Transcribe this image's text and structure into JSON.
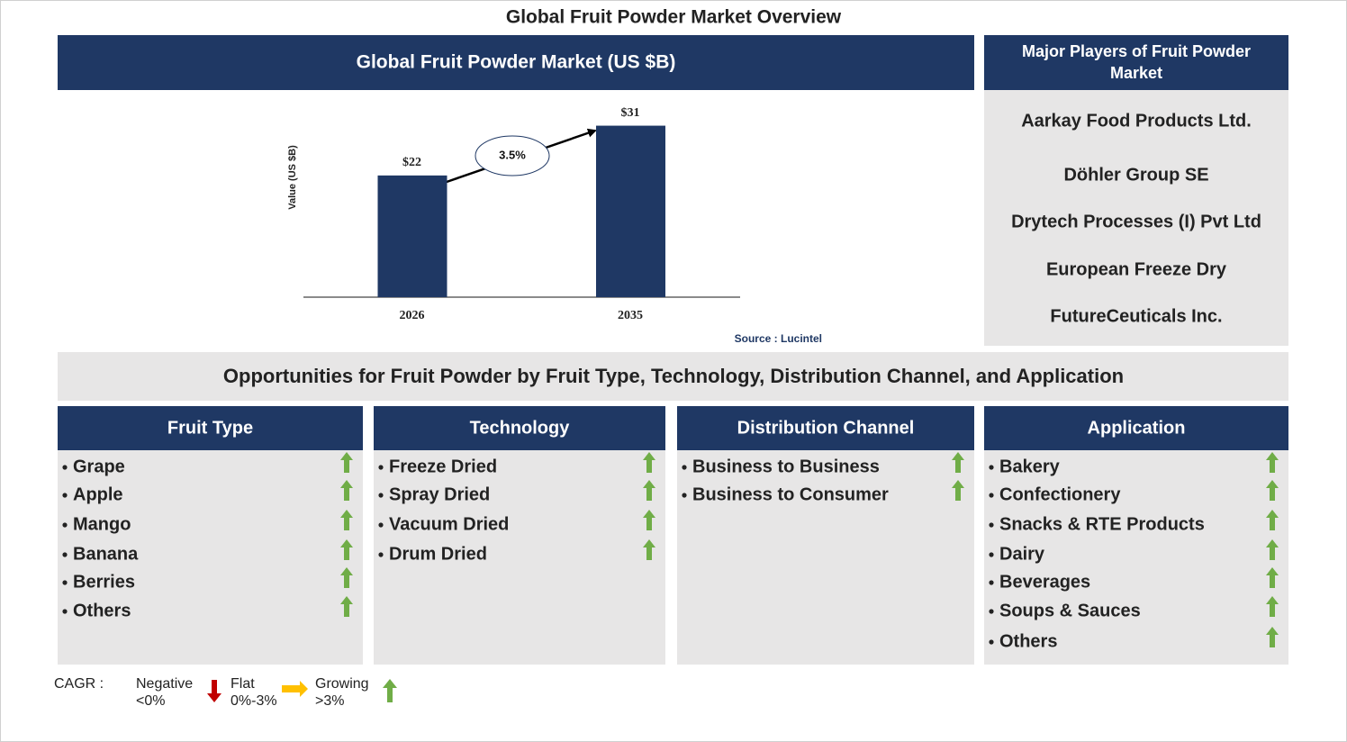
{
  "title": "Global Fruit Powder Market Overview",
  "chart_data": {
    "type": "bar",
    "title": "Global Fruit Powder Market (US $B)",
    "y_label": "Value (US $B)",
    "categories": [
      "2026",
      "2035"
    ],
    "values": [
      22,
      31
    ],
    "value_labels": [
      "$22",
      "$31"
    ],
    "color": "#1f3864",
    "ylim": [
      0,
      35
    ],
    "annotation": "3.5%",
    "source": "Source : Lucintel"
  },
  "players": {
    "title": "Major Players of Fruit Powder Market",
    "items": [
      "Aarkay Food Products Ltd.",
      "Döhler Group SE",
      "Drytech Processes (I) Pvt Ltd",
      "European Freeze Dry",
      "FutureCeuticals Inc."
    ]
  },
  "opportunities": {
    "title": "Opportunities for Fruit Powder by Fruit Type, Technology, Distribution Channel, and Application",
    "segments": [
      {
        "title": "Fruit Type",
        "items": [
          "Grape",
          "Apple",
          "Mango",
          "Banana",
          "Berries",
          "Others"
        ]
      },
      {
        "title": "Technology",
        "items": [
          "Freeze Dried",
          "Spray Dried",
          "Vacuum Dried",
          "Drum Dried"
        ]
      },
      {
        "title": "Distribution Channel",
        "items": [
          "Business to Business",
          "Business to Consumer"
        ]
      },
      {
        "title": "Application",
        "items": [
          "Bakery",
          "Confectionery",
          "Snacks & RTE Products",
          "Dairy",
          "Beverages",
          "Soups & Sauces",
          "Others"
        ]
      }
    ]
  },
  "legend": {
    "label": "CAGR :",
    "items": [
      {
        "name": "Negative",
        "range": "<0%"
      },
      {
        "name": "Flat",
        "range": "0%-3%"
      },
      {
        "name": "Growing",
        "range": ">3%"
      }
    ]
  }
}
